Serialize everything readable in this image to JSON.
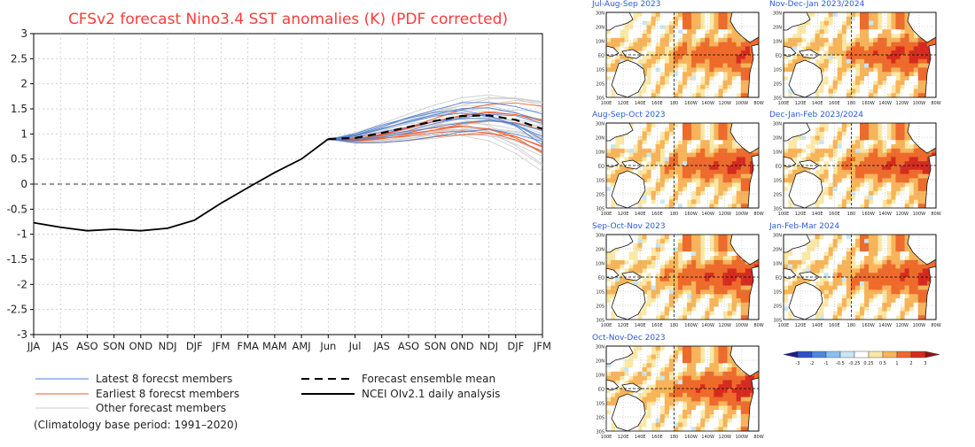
{
  "chart_data": [
    {
      "type": "line",
      "title": "CFSv2 forecast Nino3.4 SST anomalies (K) (PDF corrected)",
      "title_color": "#ff3b3b",
      "x_categories": [
        "JJA",
        "JAS",
        "ASO",
        "SON",
        "OND",
        "NDJ",
        "DJF",
        "JFM",
        "FMA",
        "MAM",
        "AMJ",
        "Jun",
        "Jul",
        "JAS",
        "ASO",
        "SON",
        "OND",
        "NDJ",
        "DJF",
        "JFM"
      ],
      "ylim": [
        -3,
        3
      ],
      "y_ticks": [
        "3",
        "2.5",
        "2",
        "1.5",
        "1",
        "0.5",
        "0",
        "-0.5",
        "-1",
        "-1.5",
        "-2",
        "-2.5",
        "-3"
      ],
      "grid": true,
      "observed": {
        "name": "NCEI OIv2.1 daily analysis",
        "color": "#000000",
        "x": [
          0,
          1,
          2,
          3,
          4,
          5,
          6,
          7,
          8,
          9,
          10,
          11
        ],
        "y": [
          -0.77,
          -0.86,
          -0.93,
          -0.9,
          -0.93,
          -0.88,
          -0.72,
          -0.38,
          -0.07,
          0.23,
          0.5,
          0.9
        ]
      },
      "ensemble_mean": {
        "name": "Forecast ensemble mean",
        "color": "#000000",
        "x": [
          11,
          12,
          13,
          14,
          15,
          16,
          17,
          18,
          19
        ],
        "y": [
          0.9,
          0.92,
          1.02,
          1.14,
          1.26,
          1.36,
          1.37,
          1.28,
          1.1
        ]
      },
      "member_groups": [
        {
          "name": "Latest 8 forecst members",
          "color": "#4a7fd6",
          "count": 8,
          "end_spread": [
            0.8,
            1.4
          ]
        },
        {
          "name": "Earliest 8 forecst members",
          "color": "#f15a2a",
          "count": 8,
          "end_spread": [
            0.6,
            1.7
          ]
        },
        {
          "name": "Other forecast members",
          "color": "#c9c9c9",
          "count": 24,
          "end_spread": [
            0.2,
            1.7
          ]
        }
      ],
      "legend": {
        "placement": "bottom",
        "left": [
          "Latest 8 forecst members",
          "Earliest 8 forecst members",
          "Other forecast members"
        ],
        "right": [
          "Forecast ensemble mean",
          "NCEI OIv2.1 daily analysis"
        ]
      },
      "footnote": "(Climatology base period: 1991–2020)"
    },
    {
      "type": "heatmap",
      "panels": [
        {
          "title": "Jul-Aug-Sep 2023"
        },
        {
          "title": "Nov-Dec-Jan 2023/2024"
        },
        {
          "title": "Aug-Sep-Oct 2023"
        },
        {
          "title": "Dec-Jan-Feb 2023/2024"
        },
        {
          "title": "Sep-Oct-Nov 2023"
        },
        {
          "title": "Jan-Feb-Mar 2024"
        },
        {
          "title": "Oct-Nov-Dec 2023"
        }
      ],
      "lat_labels": [
        "30N",
        "20N",
        "10N",
        "EQ",
        "10S",
        "20S",
        "30S"
      ],
      "lon_labels": [
        "100E",
        "120E",
        "140E",
        "160E",
        "180",
        "160W",
        "140W",
        "120W",
        "100W",
        "80W"
      ],
      "colorbar": {
        "labels": [
          "-3",
          "-2",
          "-1",
          "-0.5",
          "-0.25",
          "0.25",
          "0.5",
          "1",
          "2",
          "3"
        ],
        "colors": [
          "#1e1f8a",
          "#2f52c8",
          "#4f87e0",
          "#8cc0f0",
          "#c8e6f5",
          "#ffffff",
          "#fbe8a6",
          "#f8b45a",
          "#ee6a2b",
          "#d52b1e",
          "#8e1212"
        ]
      }
    }
  ]
}
